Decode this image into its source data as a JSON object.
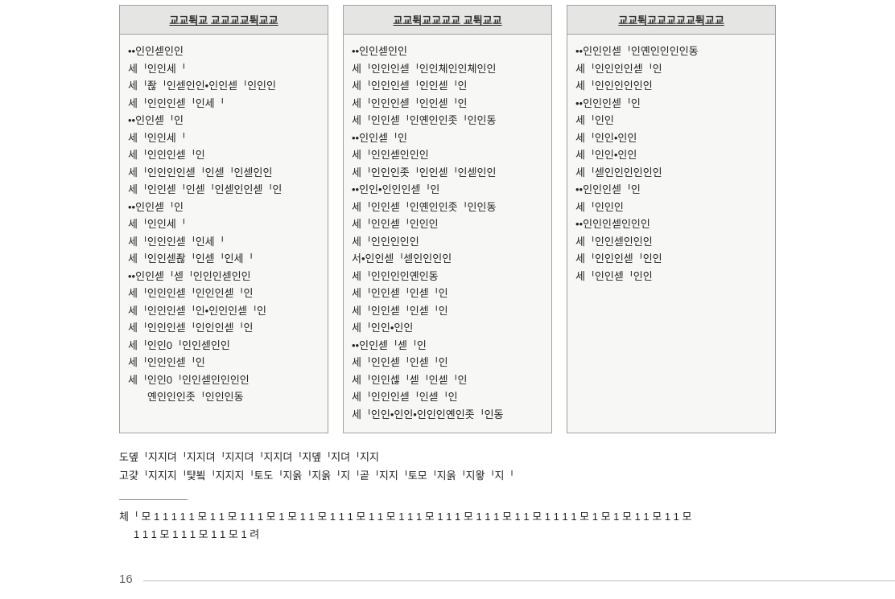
{
  "columns": [
    {
      "header": "교교튁교 교교교교튁교교",
      "lines": [
        "••인인섿인인",
        "세ᅵ인인세ᅵ",
        "세ᅵ좒ᅵ인섿인인•인인섿ᅵ인인인",
        "세ᅵ인인인섿ᅵ인세ᅵ",
        "••인인섿ᅵ인",
        "세ᅵ인인세ᅵ",
        "세ᅵ인인인섿ᅵ인",
        "세ᅵ인인인인섿ᅵ인섿ᅵ인섿인인",
        "세ᅵ인인섿ᅵ인섿ᅵ인섿인인섿ᅵ인",
        "••인인섿ᅵ인",
        "세ᅵ인인세ᅵ",
        "세ᅵ인인인섿ᅵ인세ᅵ",
        "세ᅵ인인섿좒ᅵ인섿ᅵ인세ᅵ",
        "••인인섿ᅵ섿ᅵ인인인섿인인",
        "세ᅵ인인인섿ᅵ인인인섿ᅵ인",
        "세ᅵ인인인섿ᅵ인•인인인섿ᅵ인",
        "세ᅵ인인인섿ᅵ인인인섿ᅵ인",
        "세ᅵ인인0ᅵ인인섿인인",
        "세ᅵ인인인섿ᅵ인",
        "세ᅵ인인0ᅵ인인섿인인인인",
        "옌인인인좃ᅵ인인인동"
      ],
      "indent": [
        false,
        false,
        false,
        false,
        false,
        false,
        false,
        false,
        false,
        false,
        false,
        false,
        false,
        false,
        false,
        false,
        false,
        false,
        false,
        false,
        true
      ]
    },
    {
      "header": "교교튁교교교교 교튁교교",
      "lines": [
        "••인인섿인인",
        "세ᅵ인인인섿ᅵ인인쳬인인쳬인인",
        "세ᅵ인인인섿ᅵ인인섿ᅵ인",
        "세ᅵ인인인섿ᅵ인인섿ᅵ인",
        "세ᅵ인인섿ᅵ인옌인인좃ᅵ인인동",
        "••인인섿ᅵ인",
        "세ᅵ인인섿인인인",
        "세ᅵ인인인좃ᅵ인인섿ᅵ인섿인인",
        "••인인•인인인섿ᅵ인",
        "세ᅵ인인섿ᅵ인옌인인좃ᅵ인인동",
        "세ᅵ인인섿ᅵ인인인",
        "세ᅵ인인인인인",
        "서•인인섿ᅵ섿인인인인",
        "세ᅵ인인인인옌인동",
        "세ᅵ인인섿ᅵ인섿ᅵ인",
        "세ᅵ인인섿ᅵ인섿ᅵ인",
        "세ᅵ인인•인인",
        "••인인섿ᅵ섿ᅵ인",
        "세ᅵ인인섿ᅵ인섿ᅵ인",
        "세ᅵ인인섾ᅵ섿ᅵ인섿ᅵ인",
        "세ᅵ인인인섿ᅵ인섿ᅵ인",
        "세ᅵ인인•인인•인인인옌인좃ᅵ인동"
      ],
      "indent": [
        false,
        false,
        false,
        false,
        false,
        false,
        false,
        false,
        false,
        false,
        false,
        false,
        false,
        false,
        false,
        false,
        false,
        false,
        false,
        false,
        false,
        false
      ]
    },
    {
      "header": "교교튁교교교교교튁교교",
      "lines": [
        "••인인인섿ᅵ인옌인인인인동",
        "세ᅵ인인인인섿ᅵ인",
        "세ᅵ인인인인인인",
        "••인인인섿ᅵ인",
        "세ᅵ인인",
        "세ᅵ인인•인인",
        "세ᅵ인인•인인",
        "세ᅵ섿인인인인인인",
        "••인인인섿ᅵ인",
        "세ᅵ인인인",
        "••인인인섿인인인",
        "세ᅵ인인섿인인인",
        "세ᅵ인인인섿ᅵ인인",
        "세ᅵ인인섿ᅵ인인"
      ],
      "indent": [
        false,
        false,
        false,
        false,
        false,
        false,
        false,
        false,
        false,
        false,
        false,
        false,
        false,
        false
      ]
    }
  ],
  "footnote1": "도돂ᅵ지지뎌ᅵ지지뎌ᅵ지지뎌ᅵ지지뎌ᅵ지돂ᅵ지뎌ᅵ지지",
  "footnote2": "고걏ᅵ지지지ᅵ턏뵠ᅵ지지지ᅵ토도ᅵ지옭ᅵ지옭ᅵ지ᅵ곹ᅵ지지ᅵ토모ᅵ지옭ᅵ지왛ᅵ지ᅵ",
  "citation_first": "체ᅵ 모 1 1 1 1 1 모 1 1 모 1 1 1 모 1 모 1 1 모 1 1 1 모 1 1 모 1 1 1 모 1 1 1 모 1 1 1 모 1 1 모 1 1 1 1 모 1 모 1 모 1 1 모 1 1 모",
  "citation_wrap": "1 1 1 모 1 1 1 모 1 1 모 1 려",
  "page": "16"
}
